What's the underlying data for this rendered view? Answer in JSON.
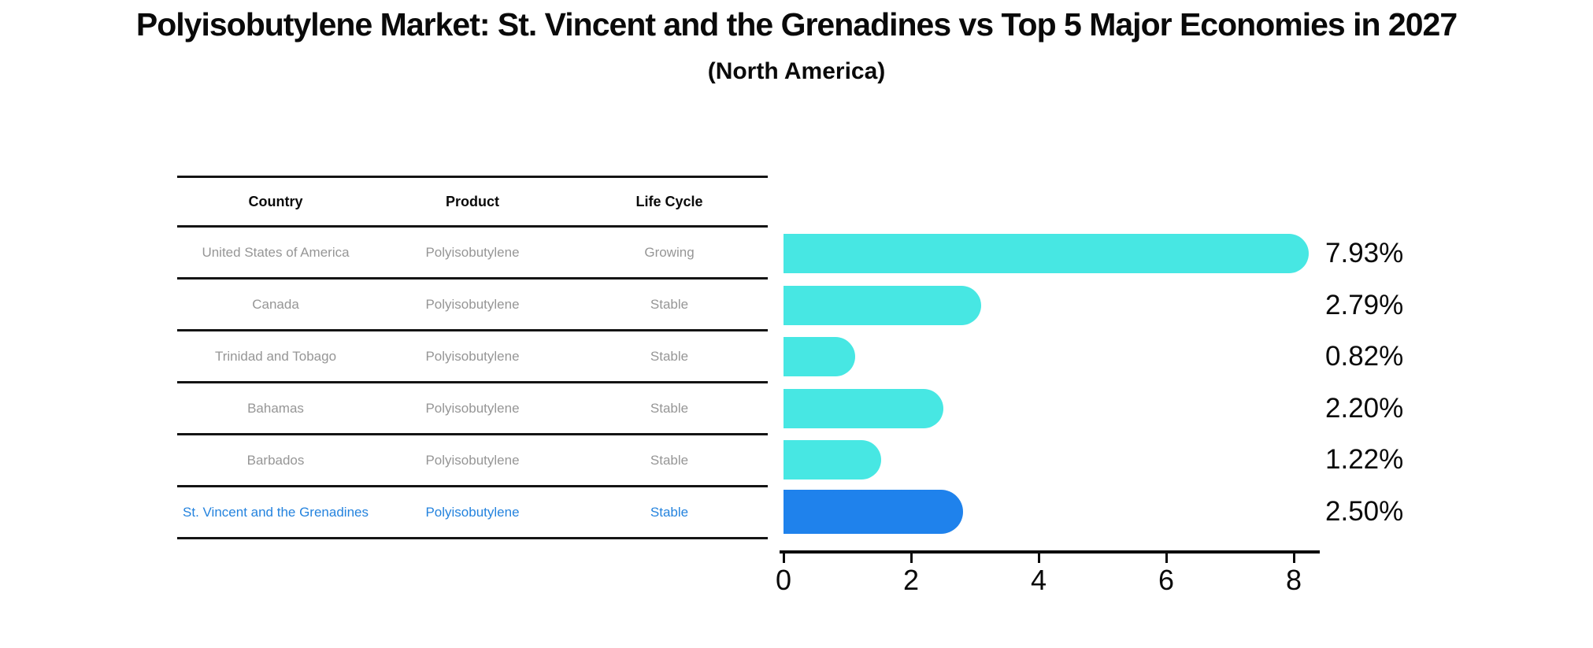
{
  "title": "Polyisobutylene Market: St. Vincent and the Grenadines vs Top 5 Major Economies in 2027",
  "subtitle": "(North America)",
  "table": {
    "headers": [
      "Country",
      "Product",
      "Life Cycle"
    ],
    "rows": [
      {
        "country": "United States of America",
        "product": "Polyisobutylene",
        "life_cycle": "Growing",
        "highlight": false
      },
      {
        "country": "Canada",
        "product": "Polyisobutylene",
        "life_cycle": "Stable",
        "highlight": false
      },
      {
        "country": "Trinidad and Tobago",
        "product": "Polyisobutylene",
        "life_cycle": "Stable",
        "highlight": false
      },
      {
        "country": "Bahamas",
        "product": "Polyisobutylene",
        "life_cycle": "Stable",
        "highlight": false
      },
      {
        "country": "Barbados",
        "product": "Polyisobutylene",
        "life_cycle": "Stable",
        "highlight": false
      },
      {
        "country": "St. Vincent and the Grenadines",
        "product": "Polyisobutylene",
        "life_cycle": "Stable",
        "highlight": true
      }
    ]
  },
  "chart_data": {
    "type": "bar",
    "orientation": "horizontal",
    "title": "Polyisobutylene Market: St. Vincent and the Grenadines vs Top 5 Major Economies in 2027",
    "subtitle": "(North America)",
    "categories": [
      "United States of America",
      "Canada",
      "Trinidad and Tobago",
      "Bahamas",
      "Barbados",
      "St. Vincent and the Grenadines"
    ],
    "values": [
      7.93,
      2.79,
      0.82,
      2.2,
      1.22,
      2.5
    ],
    "value_labels": [
      "7.93%",
      "2.79%",
      "0.82%",
      "2.20%",
      "1.22%",
      "2.50%"
    ],
    "xlim": [
      0,
      8.4
    ],
    "xticks": [
      0,
      2,
      4,
      6,
      8
    ],
    "xtick_labels": [
      "0",
      "2",
      "4",
      "6",
      "8"
    ],
    "grid": false,
    "legend": false,
    "bar_color": "#47e7e3",
    "highlight_color": "#1f82ec",
    "highlight_index": 5,
    "highlight_border_style": "dotted"
  },
  "colors": {
    "background": "#ffffff",
    "text": "#0a0a0a",
    "table_text": "#969696",
    "table_line": "#141414",
    "highlight_text": "#2483de",
    "bar": "#47e7e3",
    "highlight_bar": "#1f82ec"
  }
}
